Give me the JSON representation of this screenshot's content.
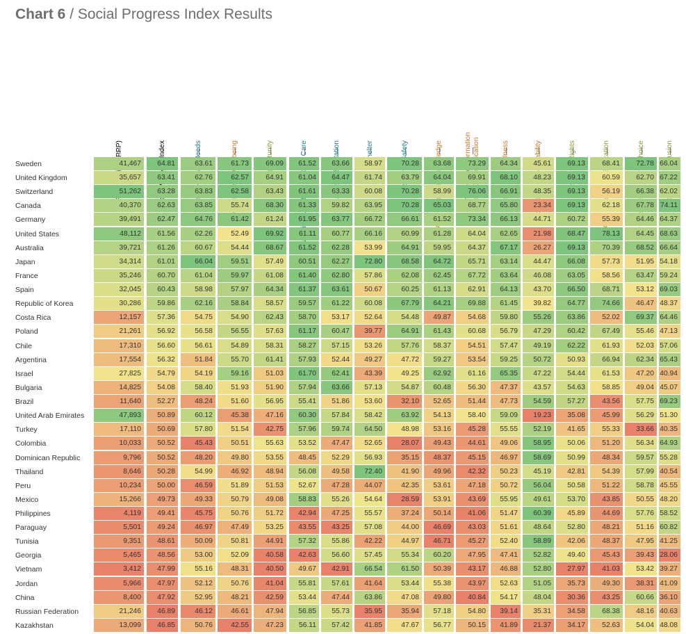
{
  "title": {
    "label": "Chart 6",
    "text": " / Social Progress Index Results"
  },
  "colors": {
    "low": "#e8826a",
    "mid": "#f2e48c",
    "high": "#7dc47c",
    "header_black": "#000000",
    "header_teal": "#1a7a94",
    "header_orange": "#c8782a",
    "header_olive": "#8f9a32"
  },
  "chart_data": {
    "type": "heatmap",
    "columns": [
      {
        "label": "GDP per capita  (PPP)",
        "group": "gdp"
      },
      {
        "label": "Social Progress Index",
        "group": "spi"
      },
      {
        "label": "Basic Human Needs",
        "group": "bhn"
      },
      {
        "label": "Foundations of Wellbeing",
        "group": "fow"
      },
      {
        "label": "Opportunity",
        "group": "opp"
      },
      {
        "label": "Nutrition and Basic Medical Care",
        "group": "bhn"
      },
      {
        "label": "Air, Water, and Sanitation",
        "group": "bhn"
      },
      {
        "label": "Shelter",
        "group": "bhn"
      },
      {
        "label": "Personal Safety",
        "group": "bhn"
      },
      {
        "label": "Access to Basic Knowledge",
        "group": "fow"
      },
      {
        "label": "Access to Information\nand Communication",
        "group": "fow"
      },
      {
        "label": "Health and Wellness",
        "group": "fow"
      },
      {
        "label": "Ecosystem Sustainability",
        "group": "fow"
      },
      {
        "label": "Personal Rights",
        "group": "opp"
      },
      {
        "label": "Access to Higher Education",
        "group": "opp"
      },
      {
        "label": "Personal Freedom and Choice",
        "group": "opp"
      },
      {
        "label": "Equity and Inclusion",
        "group": "opp"
      }
    ],
    "rows": [
      {
        "country": "Sweden",
        "values": [
          "41,467",
          "64.81",
          "63.61",
          "61.73",
          "69.09",
          "61.52",
          "63.66",
          "58.97",
          "70.28",
          "63.68",
          "73.29",
          "64.34",
          "45.61",
          "69.13",
          "68.41",
          "72.78",
          "66.04"
        ]
      },
      {
        "country": "United Kingdom",
        "values": [
          "35,657",
          "63.41",
          "62.76",
          "62.57",
          "64.91",
          "61.04",
          "64.47",
          "61.74",
          "63.79",
          "64.04",
          "69.91",
          "68.10",
          "48.23",
          "69.13",
          "60.59",
          "62.70",
          "67.22"
        ]
      },
      {
        "country": "Switzerland",
        "values": [
          "51,262",
          "63.28",
          "63.83",
          "62.58",
          "63.43",
          "61.61",
          "63.33",
          "60.08",
          "70.28",
          "58.99",
          "76.06",
          "66.91",
          "48.35",
          "69.13",
          "56.19",
          "66.38",
          "62.02"
        ]
      },
      {
        "country": "Canada",
        "values": [
          "40,370",
          "62.63",
          "63.85",
          "55.74",
          "68.30",
          "61.33",
          "59.82",
          "63.95",
          "70.28",
          "65.03",
          "68.77",
          "65.80",
          "23.34",
          "69.13",
          "62.18",
          "67.78",
          "74.11"
        ]
      },
      {
        "country": "Germany",
        "values": [
          "39,491",
          "62.47",
          "64.76",
          "61.42",
          "61.24",
          "61.95",
          "63.77",
          "66.72",
          "66.61",
          "61.52",
          "73.34",
          "66.13",
          "44.71",
          "60.72",
          "55.39",
          "64.46",
          "64.37"
        ]
      },
      {
        "country": "United States",
        "values": [
          "48,112",
          "61.56",
          "62.26",
          "52.49",
          "69.92",
          "61.11",
          "60.77",
          "66.16",
          "60.99",
          "61.28",
          "64.04",
          "62.65",
          "21.98",
          "68.47",
          "78.13",
          "64.45",
          "68.63"
        ]
      },
      {
        "country": "Australia",
        "values": [
          "39,721",
          "61.26",
          "60.67",
          "54.44",
          "68.67",
          "61.52",
          "62.28",
          "53.99",
          "64.91",
          "59.95",
          "64.37",
          "67.17",
          "26.27",
          "69.13",
          "70.39",
          "68.52",
          "66.64"
        ]
      },
      {
        "country": "Japan",
        "values": [
          "34,314",
          "61.01",
          "66.04",
          "59.51",
          "57.49",
          "60.51",
          "62.27",
          "72.80",
          "68.58",
          "64.72",
          "65.71",
          "63.14",
          "44.47",
          "66.08",
          "57.73",
          "51.95",
          "54.18"
        ]
      },
      {
        "country": "France",
        "values": [
          "35,246",
          "60.70",
          "61.04",
          "59.97",
          "61.08",
          "61.40",
          "62.80",
          "57.86",
          "62.08",
          "62.45",
          "67.72",
          "63.64",
          "46.08",
          "63.05",
          "58.56",
          "63.47",
          "59.24"
        ]
      },
      {
        "country": "Spain",
        "values": [
          "32,045",
          "60.43",
          "58.98",
          "57.97",
          "64.34",
          "61.37",
          "63.61",
          "50.67",
          "60.25",
          "61.13",
          "62.91",
          "64.13",
          "43.70",
          "66.50",
          "68.71",
          "53.12",
          "69.03"
        ]
      },
      {
        "country": "Republic of Korea",
        "values": [
          "30,286",
          "59.86",
          "62.16",
          "58.84",
          "58.57",
          "59.57",
          "61.22",
          "60.08",
          "67.79",
          "64.21",
          "69.88",
          "61.45",
          "39.82",
          "64.77",
          "74.66",
          "46.47",
          "48.37"
        ]
      },
      {
        "country": "Costa Rica",
        "values": [
          "12,157",
          "57.36",
          "54.75",
          "54.90",
          "62.43",
          "58.70",
          "53.17",
          "52.64",
          "54.48",
          "49.87",
          "54.68",
          "59.80",
          "55.26",
          "63.86",
          "52.02",
          "69.37",
          "64.46"
        ]
      },
      {
        "country": "Poland",
        "values": [
          "21,261",
          "56.92",
          "56.58",
          "56.55",
          "57.63",
          "61.17",
          "60.47",
          "39.77",
          "64.91",
          "61.43",
          "60.68",
          "56.79",
          "47.29",
          "60.42",
          "67.49",
          "55.46",
          "47.13"
        ]
      },
      {
        "country": "Chile",
        "values": [
          "17,310",
          "56.60",
          "56.61",
          "54.89",
          "58.31",
          "58.27",
          "57.15",
          "53.26",
          "57.76",
          "58.37",
          "54.51",
          "57.47",
          "49.19",
          "62.22",
          "61.93",
          "52.03",
          "57.06"
        ]
      },
      {
        "country": "Argentina",
        "values": [
          "17,554",
          "56.32",
          "51.84",
          "55.70",
          "61.41",
          "57.93",
          "52.44",
          "49.27",
          "47.72",
          "59.27",
          "53.54",
          "59.25",
          "50.72",
          "50.93",
          "66.94",
          "62.34",
          "65.43"
        ]
      },
      {
        "country": "Israel",
        "values": [
          "27,825",
          "54.79",
          "54.19",
          "59.16",
          "51.03",
          "61.70",
          "62.41",
          "43.39",
          "49.25",
          "62.92",
          "61.16",
          "65.35",
          "47.22",
          "54.44",
          "61.53",
          "47.20",
          "40.94"
        ]
      },
      {
        "country": "Bulgaria",
        "values": [
          "14,825",
          "54.08",
          "58.40",
          "51.93",
          "51.90",
          "57.94",
          "63.66",
          "57.13",
          "54.87",
          "60.48",
          "56.30",
          "47.37",
          "43.57",
          "54.63",
          "58.85",
          "49.04",
          "45.07"
        ]
      },
      {
        "country": "Brazil",
        "values": [
          "11,640",
          "52.27",
          "48.24",
          "51.60",
          "56.95",
          "55.41",
          "51.86",
          "53.60",
          "32.10",
          "52.65",
          "51.44",
          "47.73",
          "54.59",
          "57.27",
          "43.56",
          "57.75",
          "69.23"
        ]
      },
      {
        "country": "United Arab Emirates",
        "values": [
          "47,893",
          "50.89",
          "60.12",
          "45.38",
          "47.16",
          "60.30",
          "57.84",
          "58.42",
          "63.92",
          "54.13",
          "58.40",
          "59.09",
          "19.23",
          "35.08",
          "45.99",
          "56.29",
          "51.30"
        ]
      },
      {
        "country": "Turkey",
        "values": [
          "17,110",
          "50.69",
          "57.80",
          "51.54",
          "42.75",
          "57.96",
          "59.74",
          "64.50",
          "48.98",
          "53.16",
          "45.28",
          "55.55",
          "52.19",
          "41.65",
          "55.33",
          "33.66",
          "40.35"
        ]
      },
      {
        "country": "Colombia",
        "values": [
          "10,033",
          "50.52",
          "45.43",
          "50.51",
          "55.63",
          "53.52",
          "47.47",
          "52.65",
          "28.07",
          "49.43",
          "44.61",
          "49.06",
          "58.95",
          "50.06",
          "51.20",
          "56.34",
          "64.93"
        ]
      },
      {
        "country": "Dominican Republic",
        "values": [
          "9,796",
          "50.52",
          "48.20",
          "49.80",
          "53.55",
          "48.45",
          "52.29",
          "56.93",
          "35.15",
          "48.37",
          "45.15",
          "46.97",
          "58.69",
          "50.99",
          "48.34",
          "59.57",
          "55.28"
        ]
      },
      {
        "country": "Thailand",
        "values": [
          "8,646",
          "50.28",
          "54.99",
          "46.92",
          "48.94",
          "56.08",
          "49.58",
          "72.40",
          "41.90",
          "49.96",
          "42.32",
          "50.23",
          "45.19",
          "42.81",
          "54.39",
          "57.99",
          "40.54"
        ]
      },
      {
        "country": "Peru",
        "values": [
          "10,234",
          "50.00",
          "46.59",
          "51.89",
          "51.53",
          "52.67",
          "47.28",
          "44.07",
          "42.35",
          "53.61",
          "47.18",
          "50.72",
          "56.04",
          "50.58",
          "51.22",
          "58.78",
          "45.55"
        ]
      },
      {
        "country": "Mexico",
        "values": [
          "15,266",
          "49.73",
          "49.33",
          "50.79",
          "49.08",
          "58.83",
          "55.26",
          "54.64",
          "28.59",
          "53.91",
          "43.69",
          "55.95",
          "49.61",
          "53.70",
          "43.85",
          "50.55",
          "48.20"
        ]
      },
      {
        "country": "Philippines",
        "values": [
          "4,119",
          "49.41",
          "45.75",
          "50.76",
          "51.72",
          "42.94",
          "47.25",
          "55.57",
          "37.24",
          "50.14",
          "41.06",
          "51.47",
          "60.39",
          "45.89",
          "44.69",
          "57.76",
          "58.52"
        ]
      },
      {
        "country": "Paraguay",
        "values": [
          "5,501",
          "49.24",
          "46.97",
          "47.49",
          "53.25",
          "43.55",
          "43.25",
          "57.08",
          "44.00",
          "46.69",
          "43.03",
          "51.61",
          "48.64",
          "52.80",
          "48.21",
          "51.16",
          "60.82"
        ]
      },
      {
        "country": "Tunisia",
        "values": [
          "9,351",
          "48.61",
          "50.09",
          "50.81",
          "44.91",
          "57.32",
          "55.86",
          "42.22",
          "44.97",
          "46.71",
          "45.27",
          "52.40",
          "58.89",
          "42.06",
          "48.37",
          "47.95",
          "41.25"
        ]
      },
      {
        "country": "Georgia",
        "values": [
          "5,465",
          "48.56",
          "53.00",
          "52.09",
          "40.58",
          "42.63",
          "56.60",
          "57.45",
          "55.34",
          "60.20",
          "47.95",
          "47.41",
          "52.82",
          "49.40",
          "45.43",
          "39.43",
          "28.06"
        ]
      },
      {
        "country": "Vietnam",
        "values": [
          "3,412",
          "47.99",
          "55.16",
          "48.31",
          "40.50",
          "49.67",
          "42.91",
          "66.54",
          "61.50",
          "50.39",
          "43.17",
          "46.88",
          "52.80",
          "27.97",
          "41.03",
          "53.42",
          "39.27"
        ]
      },
      {
        "country": "Jordan",
        "values": [
          "5,966",
          "47.97",
          "52.12",
          "50.76",
          "41.04",
          "55.81",
          "57.61",
          "41.64",
          "53.44",
          "55.38",
          "43.97",
          "52.63",
          "51.05",
          "35.73",
          "49.30",
          "38.31",
          "41.09"
        ]
      },
      {
        "country": "China",
        "values": [
          "8,400",
          "47.92",
          "52.95",
          "48.21",
          "42.59",
          "53.44",
          "47.44",
          "63.86",
          "47.08",
          "49.80",
          "40.84",
          "54.17",
          "48.04",
          "30.36",
          "43.25",
          "60.66",
          "36.10"
        ]
      },
      {
        "country": "Russian Federation",
        "values": [
          "21,246",
          "46.89",
          "46.12",
          "46.61",
          "47.94",
          "56.85",
          "55.73",
          "35.95",
          "35.94",
          "57.18",
          "54.80",
          "39.14",
          "35.31",
          "34.58",
          "68.38",
          "48.16",
          "40.63"
        ]
      },
      {
        "country": "Kazakhstan",
        "values": [
          "13,099",
          "46.85",
          "50.76",
          "42.55",
          "47.23",
          "56.11",
          "57.42",
          "41.85",
          "47.67",
          "56.77",
          "50.15",
          "41.89",
          "21.37",
          "34.17",
          "52.63",
          "54.04",
          "48.08"
        ]
      }
    ]
  }
}
